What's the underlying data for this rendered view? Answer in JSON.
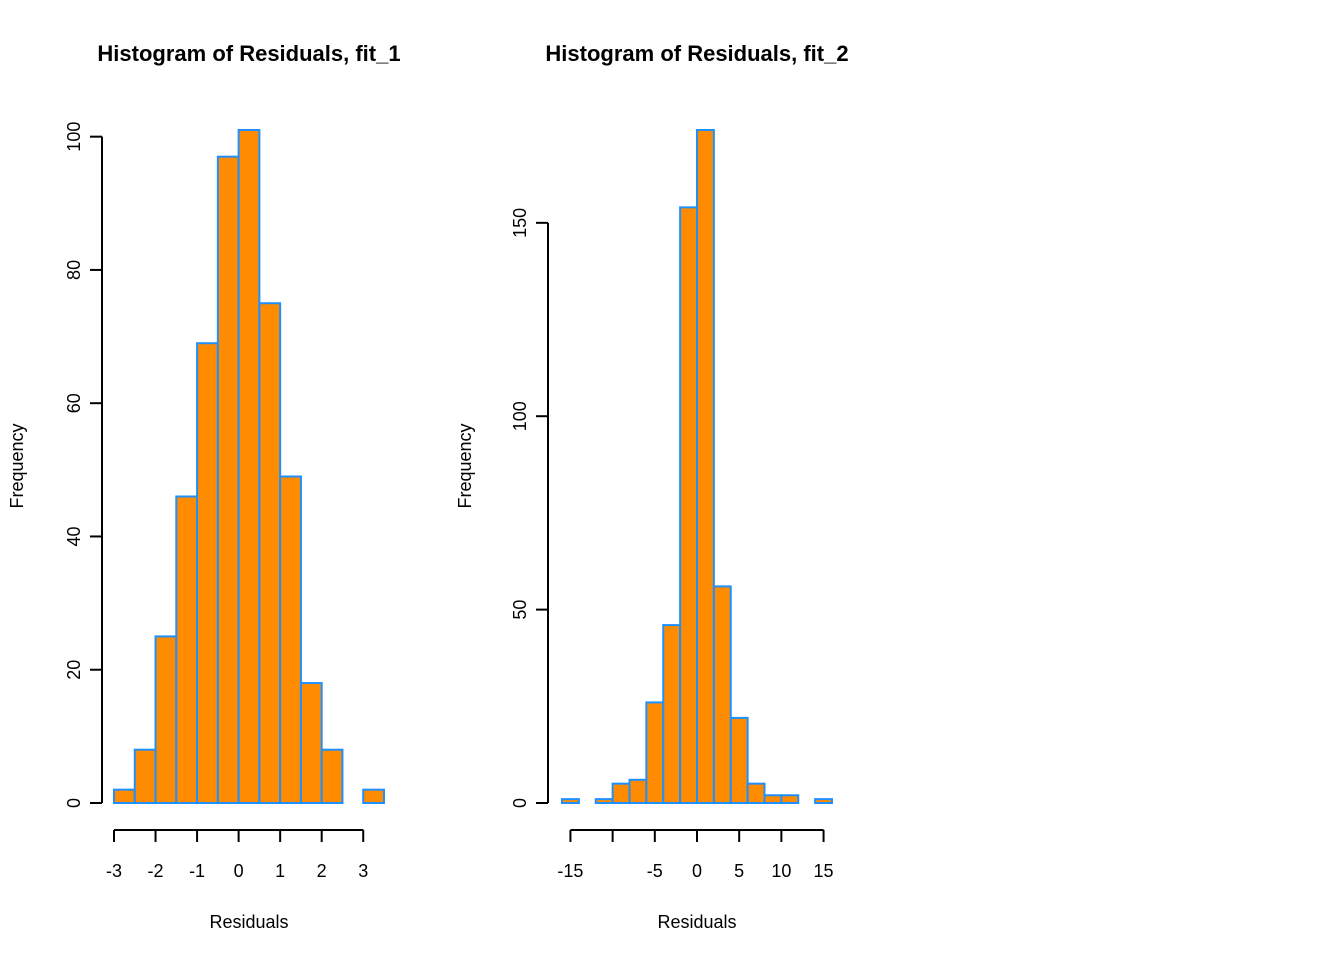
{
  "chart_data": [
    {
      "type": "bar",
      "subtype": "histogram",
      "title": "Histogram of Residuals, fit_1",
      "xlabel": "Residuals",
      "ylabel": "Frequency",
      "bin_edges": [
        -3,
        -2.5,
        -2,
        -1.5,
        -1,
        -0.5,
        0,
        0.5,
        1,
        1.5,
        2,
        2.5,
        3,
        3.5
      ],
      "values": [
        2,
        8,
        25,
        46,
        69,
        97,
        101,
        75,
        49,
        18,
        8,
        0,
        2
      ],
      "x_ticks": [
        -3,
        -2,
        -1,
        0,
        1,
        2,
        3
      ],
      "x_tick_labels": [
        "-3",
        "-2",
        "-1",
        "0",
        "1",
        "2",
        "3"
      ],
      "y_ticks": [
        0,
        20,
        40,
        60,
        80,
        100
      ],
      "y_tick_labels": [
        "0",
        "20",
        "40",
        "60",
        "80",
        "100"
      ],
      "xlim": [
        -3,
        3.5
      ],
      "ylim": [
        0,
        101
      ],
      "grid": false,
      "fill_color": "#FF8C00",
      "border_color": "#1E90FF"
    },
    {
      "type": "bar",
      "subtype": "histogram",
      "title": "Histogram of Residuals, fit_2",
      "xlabel": "Residuals",
      "ylabel": "Frequency",
      "bin_edges": [
        -16,
        -14,
        -12,
        -10,
        -8,
        -6,
        -4,
        -2,
        0,
        2,
        4,
        6,
        8,
        10,
        12,
        14,
        16
      ],
      "values": [
        1,
        0,
        1,
        5,
        6,
        26,
        46,
        154,
        174,
        56,
        22,
        5,
        2,
        2,
        0,
        1
      ],
      "x_ticks": [
        -15,
        -10,
        -5,
        0,
        5,
        10,
        15
      ],
      "x_tick_labels": [
        "-15",
        "",
        "-5",
        "0",
        "5",
        "10",
        "15"
      ],
      "y_ticks": [
        0,
        50,
        100,
        150
      ],
      "y_tick_labels": [
        "0",
        "50",
        "100",
        "150"
      ],
      "xlim": [
        -16,
        16
      ],
      "ylim": [
        0,
        174
      ],
      "grid": false,
      "fill_color": "#FF8C00",
      "border_color": "#1E90FF"
    }
  ]
}
